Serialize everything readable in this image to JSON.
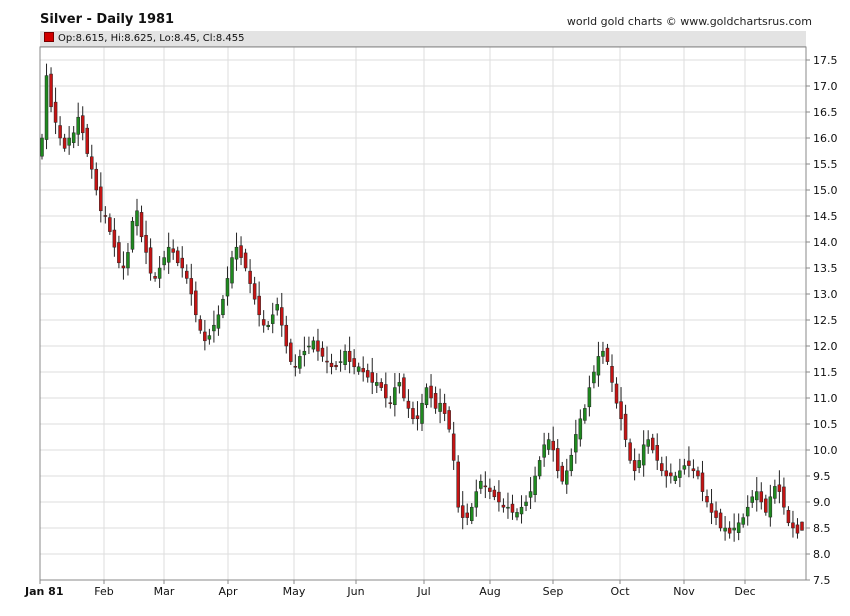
{
  "header": {
    "title": "Silver - Daily 1981",
    "credit": "world gold charts © www.goldchartsrus.com",
    "ohlc": "Op:8.615, Hi:8.625, Lo:8.45, Cl:8.455"
  },
  "colors": {
    "up": "#1f8a1f",
    "down": "#c41414",
    "grid": "#dddddd",
    "frame": "#888888"
  },
  "chart_data": {
    "type": "candlestick",
    "title": "Silver - Daily 1981",
    "ylim": [
      7.5,
      17.75
    ],
    "y_ticks": [
      "17.5",
      "17.0",
      "16.5",
      "16.0",
      "15.5",
      "15.0",
      "14.5",
      "14.0",
      "13.5",
      "13.0",
      "12.5",
      "12.0",
      "11.5",
      "11.0",
      "10.5",
      "10.0",
      "9.5",
      "9.0",
      "8.5",
      "8.0",
      "7.5"
    ],
    "x_ticks": [
      "Jan 81",
      "Feb",
      "Mar",
      "Apr",
      "May",
      "Jun",
      "Jul",
      "Aug",
      "Sep",
      "Oct",
      "Nov",
      "Dec"
    ],
    "grid": true,
    "last_bar": {
      "open": 8.615,
      "high": 8.625,
      "low": 8.45,
      "close": 8.455
    },
    "closes": [
      16.0,
      17.2,
      16.6,
      16.3,
      16.0,
      15.8,
      16.0,
      16.1,
      16.4,
      16.1,
      15.7,
      15.4,
      15.0,
      14.6,
      14.5,
      14.2,
      13.9,
      13.6,
      13.5,
      13.8,
      14.4,
      14.6,
      14.1,
      13.8,
      13.4,
      13.3,
      13.5,
      13.7,
      13.9,
      13.8,
      13.6,
      13.5,
      13.3,
      13.0,
      12.6,
      12.3,
      12.1,
      12.2,
      12.4,
      12.6,
      12.9,
      13.3,
      13.7,
      13.9,
      13.7,
      13.5,
      13.2,
      12.9,
      12.6,
      12.4,
      12.4,
      12.6,
      12.8,
      12.4,
      12.0,
      11.7,
      11.6,
      11.8,
      11.9,
      12.0,
      12.1,
      11.9,
      11.8,
      11.7,
      11.6,
      11.6,
      11.7,
      11.9,
      11.7,
      11.6,
      11.6,
      11.5,
      11.4,
      11.3,
      11.3,
      11.2,
      11.0,
      10.9,
      11.2,
      11.3,
      11.0,
      10.8,
      10.6,
      10.6,
      10.9,
      11.2,
      11.0,
      10.8,
      10.9,
      10.7,
      10.4,
      9.8,
      8.9,
      8.7,
      8.7,
      8.9,
      9.2,
      9.4,
      9.3,
      9.2,
      9.1,
      9.0,
      8.9,
      8.9,
      8.8,
      8.8,
      8.9,
      9.0,
      9.2,
      9.5,
      9.8,
      10.1,
      10.2,
      10.0,
      9.6,
      9.4,
      9.6,
      9.9,
      10.3,
      10.6,
      10.8,
      11.2,
      11.5,
      11.8,
      11.9,
      11.7,
      11.3,
      10.9,
      10.6,
      10.2,
      9.8,
      9.6,
      9.8,
      10.1,
      10.2,
      10.0,
      9.8,
      9.6,
      9.5,
      9.5,
      9.5,
      9.6,
      9.7,
      9.7,
      9.6,
      9.5,
      9.2,
      9.0,
      8.8,
      8.7,
      8.5,
      8.5,
      8.4,
      8.5,
      8.6,
      8.7,
      8.9,
      9.1,
      9.2,
      9.0,
      8.8,
      9.1,
      9.3,
      9.2,
      8.9,
      8.6,
      8.5,
      8.4,
      8.455
    ]
  }
}
